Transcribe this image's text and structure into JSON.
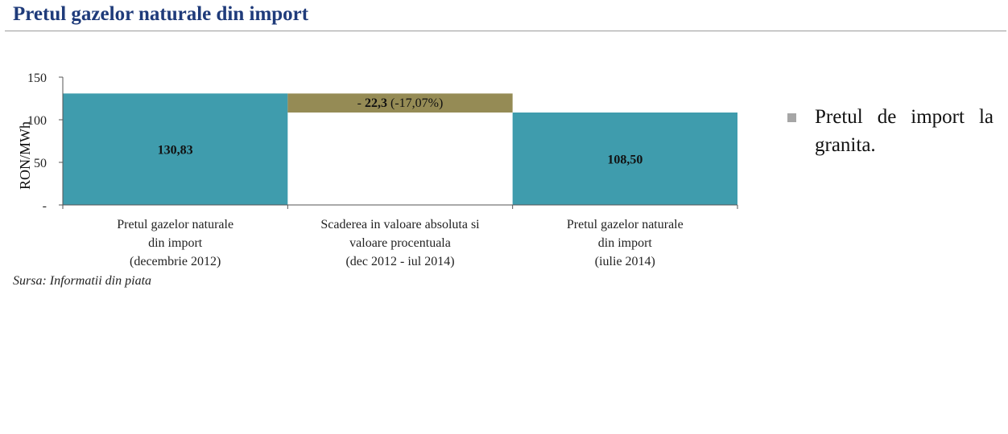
{
  "page": {
    "title": "Pretul gazelor naturale din import",
    "source": "Sursa: Informatii din piata"
  },
  "legend": {
    "text": "Pretul de import la granita.",
    "marker_color": "#a6a6a6"
  },
  "colors": {
    "main_bar": "#3f9cad",
    "change_bar": "#958b55",
    "title": "#1f3b7a"
  },
  "chart_data": {
    "type": "bar",
    "subtype": "waterfall",
    "ylabel": "RON/MWh",
    "ylim": [
      0,
      150
    ],
    "yticks": [
      {
        "value": 0,
        "label": "-"
      },
      {
        "value": 50,
        "label": "50"
      },
      {
        "value": 100,
        "label": "100"
      },
      {
        "value": 150,
        "label": "150"
      }
    ],
    "grid": false,
    "categories": [
      [
        "Pretul gazelor naturale",
        "din import",
        "(decembrie 2012)"
      ],
      [
        "Scaderea in valoare absoluta si",
        "valoare procentuala",
        "(dec 2012 - iul 2014)"
      ],
      [
        "Pretul gazelor naturale",
        "din import",
        "(iulie 2014)"
      ]
    ],
    "bars": [
      {
        "kind": "total",
        "base": 0,
        "value": 130.83,
        "label": "130,83"
      },
      {
        "kind": "change",
        "base": 108.5,
        "value": -22.3,
        "label_prefix": "- ",
        "label_bold": "22,3",
        "label_suffix": " (-17,07%)"
      },
      {
        "kind": "total",
        "base": 0,
        "value": 108.5,
        "label": "108,50"
      }
    ]
  }
}
